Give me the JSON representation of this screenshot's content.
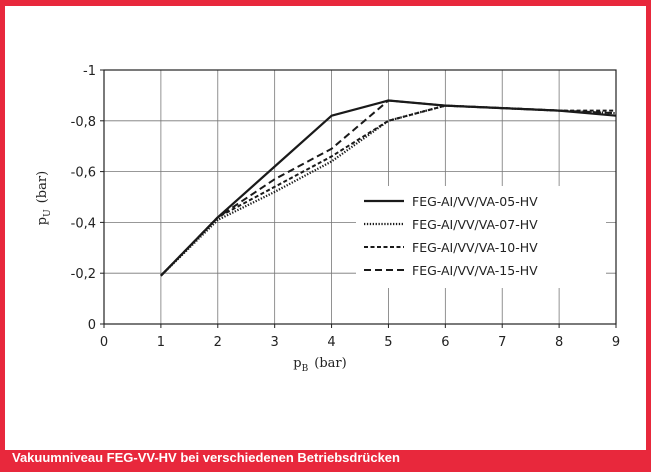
{
  "caption": "Vakuumniveau FEG-VV-HV bei verschiedenen Betriebsdrücken",
  "colors": {
    "accent": "#e8283c",
    "series": "#1a1a1a"
  },
  "chart_data": {
    "type": "line",
    "xlabel": {
      "main": "p",
      "sub": "B",
      "unit": "(bar)"
    },
    "ylabel": {
      "main": "p",
      "sub": "U",
      "unit": "(bar)"
    },
    "xlim": [
      0,
      9
    ],
    "ylim": [
      0,
      -1
    ],
    "x_ticks": [
      "0",
      "1",
      "2",
      "3",
      "4",
      "5",
      "6",
      "7",
      "8",
      "9"
    ],
    "y_ticks": [
      "0",
      "-0,2",
      "-0,4",
      "-0,6",
      "-0,8",
      "-1"
    ],
    "y_tick_values": [
      0,
      -0.2,
      -0.4,
      -0.6,
      -0.8,
      -1
    ],
    "grid": true,
    "legend_position": "center-right",
    "series": [
      {
        "name": "FEG-AI/VV/VA-05-HV",
        "style": "solid",
        "x": [
          1,
          2,
          3,
          4,
          5,
          6,
          7,
          8,
          9
        ],
        "y": [
          -0.19,
          -0.42,
          -0.62,
          -0.82,
          -0.88,
          -0.86,
          -0.85,
          -0.84,
          -0.82
        ]
      },
      {
        "name": "FEG-AI/VV/VA-07-HV",
        "style": "dotted",
        "x": [
          1,
          2,
          3,
          4,
          5,
          6,
          7,
          8,
          9
        ],
        "y": [
          -0.19,
          -0.41,
          -0.52,
          -0.64,
          -0.8,
          -0.86,
          -0.85,
          -0.84,
          -0.83
        ]
      },
      {
        "name": "FEG-AI/VV/VA-10-HV",
        "style": "short-dash",
        "x": [
          1,
          2,
          3,
          4,
          5,
          6,
          7,
          8,
          9
        ],
        "y": [
          -0.19,
          -0.42,
          -0.54,
          -0.66,
          -0.8,
          -0.86,
          -0.85,
          -0.84,
          -0.84
        ]
      },
      {
        "name": "FEG-AI/VV/VA-15-HV",
        "style": "long-dash",
        "x": [
          1,
          2,
          3,
          4,
          5,
          6,
          7,
          8,
          9
        ],
        "y": [
          -0.19,
          -0.42,
          -0.57,
          -0.69,
          -0.88,
          -0.86,
          -0.85,
          -0.84,
          -0.83
        ]
      }
    ]
  }
}
